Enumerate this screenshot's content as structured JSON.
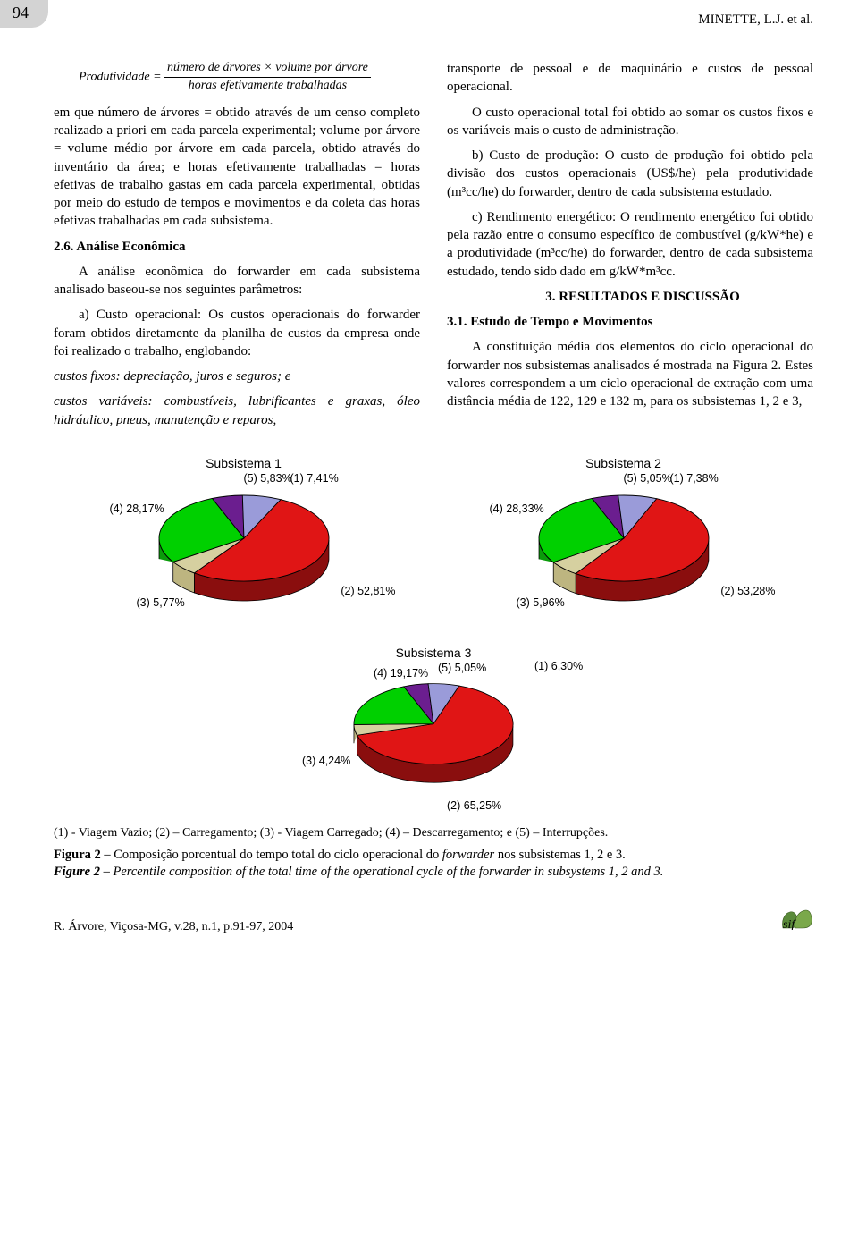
{
  "header": {
    "page_number": "94",
    "author": "MINETTE, L.J. et al."
  },
  "col1": {
    "formula_left": "Produtividade =",
    "formula_num": "número de árvores × volume por árvore",
    "formula_den": "horas efetivamente trabalhadas",
    "p1": "em que número de árvores = obtido através de um censo completo realizado a priori em cada parcela experimental; volume por árvore = volume médio por árvore em cada parcela, obtido através do inventário da área; e horas efetivamente trabalhadas = horas efetivas de trabalho gastas em cada parcela experimental, obtidas por meio do estudo de tempos e movimentos e da coleta das horas efetivas trabalhadas em cada subsistema.",
    "h26": "2.6. Análise Econômica",
    "p2": "A análise econômica do forwarder em cada subsistema analisado baseou-se nos seguintes parâmetros:",
    "p3": "a) Custo operacional: Os custos operacionais do forwarder foram obtidos diretamente da planilha de custos da empresa onde foi realizado o trabalho, englobando:",
    "p4": "custos fixos: depreciação, juros e seguros; e",
    "p5": "custos variáveis: combustíveis, lubrificantes e graxas, óleo hidráulico, pneus, manutenção e reparos,"
  },
  "col2": {
    "p1": "transporte de pessoal e de maquinário e custos de pessoal operacional.",
    "p2a": "O custo operacional total foi obtido ao somar os custos fixos e os variáveis mais o custo de administração.",
    "p2": "b) Custo de produção: O custo de produção foi obtido pela divisão dos custos operacionais (US$/he) pela produtividade (m³cc/he) do forwarder, dentro de cada subsistema estudado.",
    "p3": "c) Rendimento energético: O rendimento energético foi obtido pela razão entre o consumo específico de combustível (g/kW*he) e a produtividade (m³cc/he) do forwarder, dentro de cada subsistema estudado, tendo sido dado em g/kW*m³cc.",
    "h3": "3. RESULTADOS E DISCUSSÃO",
    "h31": "3.1. Estudo de Tempo e Movimentos",
    "p4": "A constituição média dos elementos do ciclo operacional do forwarder nos subsistemas analisados é mostrada na Figura 2. Estes valores correspondem a um ciclo operacional de extração com uma distância média de 122, 129 e 132 m, para os subsistemas 1, 2 e 3,"
  },
  "charts": {
    "title1": "Subsistema 1",
    "title2": "Subsistema 2",
    "title3": "Subsistema 3",
    "colors": {
      "c1": "#9A9BD9",
      "c2": "#E01515",
      "c3": "#D6D0A0",
      "c4": "#00D000",
      "c5": "#6B1E8F",
      "side": "#8a0e0e",
      "side_green": "#0a9b0a",
      "side_tan": "#bdb580",
      "side_blue": "#7a7bb5",
      "side_purple": "#4a155f",
      "border": "#000"
    },
    "sub1": {
      "l1": "(1)\n7,41%",
      "l2": "(2)\n52,81%",
      "l3": "(3)\n5,77%",
      "l4": "(4)\n28,17%",
      "l5": "(5)\n5,83%",
      "values": [
        7.41,
        52.81,
        5.77,
        28.17,
        5.83
      ]
    },
    "sub2": {
      "l1": "(1)\n7,38%",
      "l2": "(2)\n53,28%",
      "l3": "(3)\n5,96%",
      "l4": "(4)\n28,33%",
      "l5": "(5)\n5,05%",
      "values": [
        7.38,
        53.28,
        5.96,
        28.33,
        5.05
      ]
    },
    "sub3": {
      "l1": "(1)\n6,30%",
      "l2": "(2)\n65,25%",
      "l3": "(3)\n4,24%",
      "l4": "(4)\n19,17%",
      "l5": "(5)\n5,05%",
      "values": [
        6.3,
        65.25,
        4.24,
        19.17,
        5.05
      ]
    }
  },
  "legend": "(1) - Viagem Vazio; (2) – Carregamento; (3) - Viagem Carregado; (4) – Descarregamento; e (5) – Interrupções.",
  "fig2a": "Figura 2 – Composição porcentual do tempo total do ciclo operacional do forwarder nos subsistemas 1, 2 e 3.",
  "fig2b": "Figure 2 – Percentile composition of the total time of the operational cycle of the forwarder in subsystems 1, 2 and 3.",
  "footer": {
    "ref": "R. Árvore, Viçosa-MG, v.28, n.1, p.91-97, 2004"
  }
}
